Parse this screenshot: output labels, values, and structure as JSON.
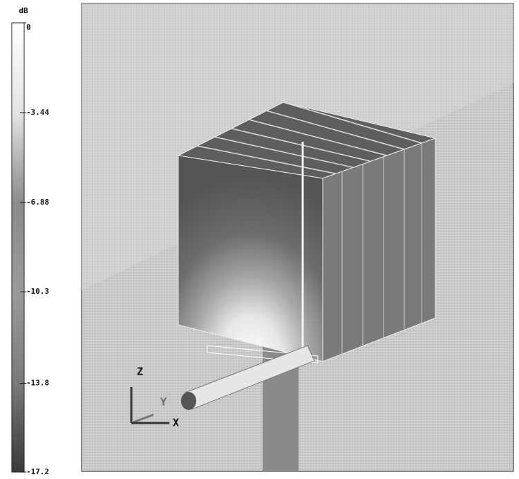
{
  "colorbar": {
    "unit": "dB",
    "ticks": [
      0,
      -3.44,
      -6.88,
      -10.3,
      -13.8,
      -17.2
    ]
  },
  "axes": {
    "z": "Z",
    "y": "Y",
    "x": "X"
  }
}
